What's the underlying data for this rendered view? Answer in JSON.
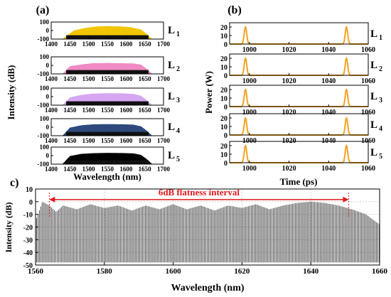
{
  "panels": {
    "a": "(a)",
    "b": "(b)",
    "c": "c)"
  },
  "chart_data": [
    {
      "id": "a",
      "type": "area",
      "title": "(a)",
      "xlabel": "Wavelength (nm)",
      "ylabel": "Intensity (dB)",
      "xlim": [
        1400,
        1700
      ],
      "ylim": [
        -100,
        100
      ],
      "xticks": [
        1400,
        1450,
        1500,
        1550,
        1600,
        1650,
        1700
      ],
      "yticks": [
        -100,
        0,
        100
      ],
      "series": [
        {
          "name": "L1",
          "color": "#f2c500",
          "x": [
            1430,
            1460,
            1490,
            1520,
            1550,
            1580,
            1610,
            1640,
            1655,
            1670
          ],
          "values": [
            -100,
            0,
            30,
            48,
            52,
            50,
            40,
            12,
            -40,
            -100
          ]
        },
        {
          "name": "L2",
          "color": "#f08ac4",
          "x": [
            1430,
            1450,
            1480,
            1510,
            1550,
            1590,
            1620,
            1640,
            1655,
            1670
          ],
          "values": [
            -100,
            -10,
            10,
            25,
            28,
            25,
            22,
            8,
            -40,
            -100
          ]
        },
        {
          "name": "L3",
          "color": "#d6a6f2",
          "x": [
            1430,
            1450,
            1480,
            1510,
            1550,
            1590,
            1620,
            1640,
            1655,
            1670
          ],
          "values": [
            -100,
            -10,
            20,
            35,
            40,
            38,
            32,
            10,
            -40,
            -100
          ]
        },
        {
          "name": "L4",
          "color": "#2e4a7d",
          "x": [
            1430,
            1450,
            1480,
            1510,
            1550,
            1590,
            1620,
            1640,
            1655,
            1670
          ],
          "values": [
            -100,
            -5,
            22,
            33,
            36,
            34,
            30,
            10,
            -40,
            -100
          ]
        },
        {
          "name": "L5",
          "color": "#000000",
          "x": [
            1430,
            1450,
            1480,
            1510,
            1550,
            1590,
            1620,
            1640,
            1655,
            1670
          ],
          "values": [
            -100,
            -5,
            20,
            28,
            32,
            30,
            26,
            8,
            -40,
            -100
          ]
        }
      ],
      "labels": [
        {
          "main": "L",
          "sub": "1"
        },
        {
          "main": "L",
          "sub": "2"
        },
        {
          "main": "L",
          "sub": "3"
        },
        {
          "main": "L",
          "sub": "4"
        },
        {
          "main": "L",
          "sub": "5"
        }
      ]
    },
    {
      "id": "b",
      "type": "line",
      "title": "(b)",
      "xlabel": "Time (ps)",
      "ylabel": "Power (W)",
      "xlim": [
        990,
        1060
      ],
      "ylim": [
        0,
        25
      ],
      "xticks": [
        1000,
        1020,
        1040,
        1060
      ],
      "yticks": [
        0,
        10,
        20
      ],
      "pulse_color": "#f4a321",
      "series": [
        {
          "name": "L1",
          "pulse_centers": [
            998,
            1049
          ],
          "peak": 20,
          "width_ps": 0.9
        },
        {
          "name": "L2",
          "pulse_centers": [
            998,
            1049
          ],
          "peak": 20,
          "width_ps": 0.9
        },
        {
          "name": "L3",
          "pulse_centers": [
            998,
            1049
          ],
          "peak": 20,
          "width_ps": 0.9
        },
        {
          "name": "L4",
          "pulse_centers": [
            998,
            1049
          ],
          "peak": 20,
          "width_ps": 0.9
        },
        {
          "name": "L5",
          "pulse_centers": [
            998,
            1049
          ],
          "peak": 20,
          "width_ps": 0.9
        }
      ],
      "labels": [
        {
          "main": "L",
          "sub": "1"
        },
        {
          "main": "L",
          "sub": "2"
        },
        {
          "main": "L",
          "sub": "3"
        },
        {
          "main": "L",
          "sub": "4"
        },
        {
          "main": "L",
          "sub": "5"
        }
      ]
    },
    {
      "id": "c",
      "type": "line",
      "title": "c)",
      "xlabel": "Wavelength (nm)",
      "ylabel": "Intensity  (dB)",
      "xlim": [
        1560,
        1660
      ],
      "ylim": [
        -50,
        10
      ],
      "xticks": [
        1560,
        1580,
        1600,
        1620,
        1640,
        1660
      ],
      "yticks": [
        -50,
        -40,
        -30,
        -20,
        -10,
        0,
        10
      ],
      "grid": true,
      "comb_spacing_nm": 0.4,
      "floor_db": -48,
      "envelope": {
        "x": [
          1560,
          1562,
          1564,
          1566,
          1568,
          1572,
          1576,
          1580,
          1584,
          1588,
          1592,
          1596,
          1600,
          1604,
          1608,
          1612,
          1616,
          1620,
          1624,
          1628,
          1632,
          1636,
          1640,
          1644,
          1648,
          1652,
          1656,
          1660
        ],
        "values": [
          -15,
          0,
          -3,
          -8,
          -3,
          -6,
          -2,
          -5,
          -3,
          -7,
          -3,
          -6,
          -2,
          -6,
          -3,
          -7,
          -3,
          -5,
          -2,
          -6,
          -3,
          -1,
          0,
          -1,
          -3,
          -6,
          -10,
          -18
        ]
      },
      "annotation": {
        "text": "6dB flatness interval",
        "color": "#e0191d",
        "x_start": 1564,
        "x_end": 1651,
        "y": 0
      }
    }
  ]
}
